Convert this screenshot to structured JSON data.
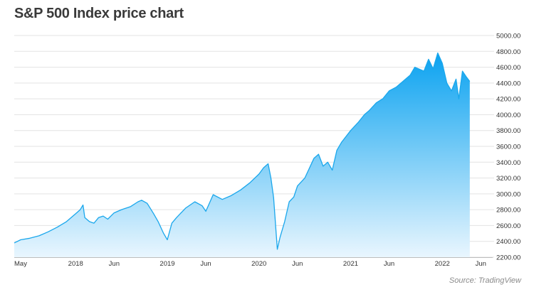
{
  "chart_data": {
    "type": "area",
    "title": "S&P 500 Index price chart",
    "xlabel": "",
    "ylabel": "",
    "ylim": [
      2200,
      5000
    ],
    "y_ticks": [
      2200,
      2400,
      2600,
      2800,
      3000,
      3200,
      3400,
      3600,
      3800,
      4000,
      4200,
      4400,
      4600,
      4800,
      5000
    ],
    "x_ticks": [
      {
        "t": 2017.33,
        "label": "May"
      },
      {
        "t": 2018.0,
        "label": "2018"
      },
      {
        "t": 2018.42,
        "label": "Jun"
      },
      {
        "t": 2019.0,
        "label": "2019"
      },
      {
        "t": 2019.42,
        "label": "Jun"
      },
      {
        "t": 2020.0,
        "label": "2020"
      },
      {
        "t": 2020.42,
        "label": "Jun"
      },
      {
        "t": 2021.0,
        "label": "2021"
      },
      {
        "t": 2021.42,
        "label": "Jun"
      },
      {
        "t": 2022.0,
        "label": "2022"
      },
      {
        "t": 2022.42,
        "label": "Jun"
      }
    ],
    "grid": true,
    "series": [
      {
        "x": [
          2017.33,
          2017.4,
          2017.5,
          2017.6,
          2017.7,
          2017.8,
          2017.9,
          2018.0,
          2018.05,
          2018.08,
          2018.1,
          2018.15,
          2018.2,
          2018.25,
          2018.3,
          2018.35,
          2018.42,
          2018.5,
          2018.6,
          2018.68,
          2018.72,
          2018.78,
          2018.85,
          2018.9,
          2018.96,
          2019.0,
          2019.05,
          2019.1,
          2019.2,
          2019.3,
          2019.38,
          2019.42,
          2019.5,
          2019.6,
          2019.7,
          2019.8,
          2019.9,
          2020.0,
          2020.05,
          2020.1,
          2020.13,
          2020.16,
          2020.2,
          2020.23,
          2020.28,
          2020.33,
          2020.38,
          2020.42,
          2020.5,
          2020.6,
          2020.65,
          2020.7,
          2020.75,
          2020.8,
          2020.85,
          2020.9,
          2021.0,
          2021.08,
          2021.15,
          2021.2,
          2021.28,
          2021.35,
          2021.42,
          2021.5,
          2021.6,
          2021.65,
          2021.7,
          2021.8,
          2021.85,
          2021.9,
          2021.95,
          2022.0,
          2022.05,
          2022.1,
          2022.15,
          2022.18,
          2022.22,
          2022.26,
          2022.3
        ],
        "values": [
          2380,
          2420,
          2440,
          2470,
          2520,
          2580,
          2650,
          2750,
          2800,
          2860,
          2700,
          2650,
          2630,
          2700,
          2720,
          2680,
          2760,
          2800,
          2840,
          2900,
          2920,
          2880,
          2750,
          2650,
          2500,
          2420,
          2630,
          2700,
          2820,
          2900,
          2850,
          2780,
          2990,
          2930,
          2980,
          3050,
          3140,
          3250,
          3330,
          3380,
          3200,
          2950,
          2300,
          2450,
          2650,
          2900,
          2960,
          3100,
          3200,
          3450,
          3500,
          3350,
          3400,
          3300,
          3550,
          3650,
          3800,
          3900,
          4000,
          4050,
          4150,
          4200,
          4300,
          4350,
          4450,
          4500,
          4600,
          4550,
          4700,
          4580,
          4780,
          4650,
          4400,
          4300,
          4450,
          4200,
          4550,
          4480,
          4420
        ]
      }
    ],
    "source": "Source: TradingView",
    "color_line": "#1aa7ec",
    "color_fill_top": "#0aa2f0",
    "color_fill_bottom": "#e9f6fe"
  }
}
